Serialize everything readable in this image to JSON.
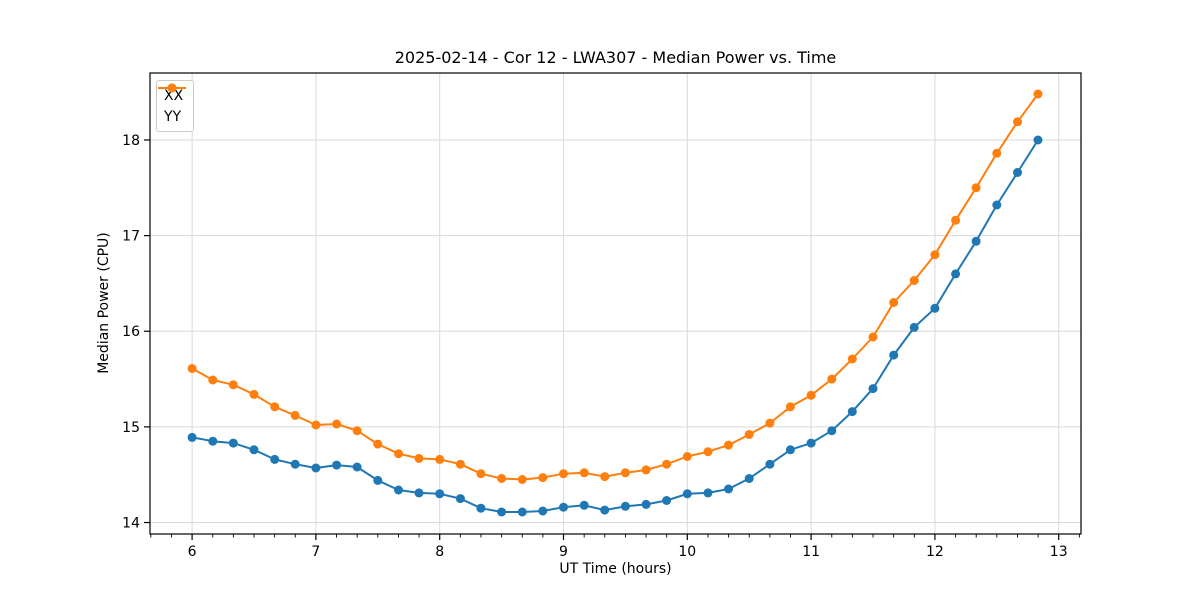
{
  "chart_data": {
    "type": "line",
    "title": "2025-02-14 - Cor 12 - LWA307 - Median Power vs. Time",
    "xlabel": "UT Time (hours)",
    "ylabel": "Median Power (CPU)",
    "xlim": [
      5.66,
      13.18
    ],
    "ylim": [
      13.88,
      18.7
    ],
    "xticks": [
      6,
      7,
      8,
      9,
      10,
      11,
      12,
      13
    ],
    "yticks": [
      14,
      15,
      16,
      17,
      18
    ],
    "minor_xtick_step": 0.16667,
    "grid": true,
    "legend_position": "upper left",
    "x": [
      6.0,
      6.167,
      6.333,
      6.5,
      6.667,
      6.833,
      7.0,
      7.167,
      7.333,
      7.5,
      7.667,
      7.833,
      8.0,
      8.167,
      8.333,
      8.5,
      8.667,
      8.833,
      9.0,
      9.167,
      9.333,
      9.5,
      9.667,
      9.833,
      10.0,
      10.167,
      10.333,
      10.5,
      10.667,
      10.833,
      11.0,
      11.167,
      11.333,
      11.5,
      11.667,
      11.833,
      12.0,
      12.167,
      12.333,
      12.5,
      12.667,
      12.833
    ],
    "series": [
      {
        "name": "XX",
        "color": "#1f77b4",
        "values": [
          14.89,
          14.85,
          14.83,
          14.76,
          14.66,
          14.61,
          14.57,
          14.6,
          14.58,
          14.44,
          14.34,
          14.31,
          14.3,
          14.25,
          14.15,
          14.11,
          14.11,
          14.12,
          14.16,
          14.18,
          14.13,
          14.17,
          14.19,
          14.23,
          14.3,
          14.31,
          14.35,
          14.46,
          14.61,
          14.76,
          14.83,
          14.96,
          15.16,
          15.4,
          15.75,
          16.04,
          16.24,
          16.6,
          16.94,
          17.32,
          17.66,
          18.0
        ]
      },
      {
        "name": "YY",
        "color": "#ff7f0e",
        "values": [
          15.61,
          15.49,
          15.44,
          15.34,
          15.21,
          15.12,
          15.02,
          15.03,
          14.96,
          14.82,
          14.72,
          14.67,
          14.66,
          14.61,
          14.51,
          14.46,
          14.45,
          14.47,
          14.51,
          14.52,
          14.48,
          14.52,
          14.55,
          14.61,
          14.69,
          14.74,
          14.81,
          14.92,
          15.04,
          15.21,
          15.33,
          15.5,
          15.71,
          15.94,
          16.3,
          16.53,
          16.8,
          17.16,
          17.5,
          17.86,
          18.19,
          18.48
        ]
      }
    ],
    "style": {
      "grid_color": "#d9d9d9",
      "spine_color": "#000000",
      "tick_color": "#000000",
      "background": "#ffffff",
      "line_width": 2,
      "marker_radius": 4.5
    }
  }
}
